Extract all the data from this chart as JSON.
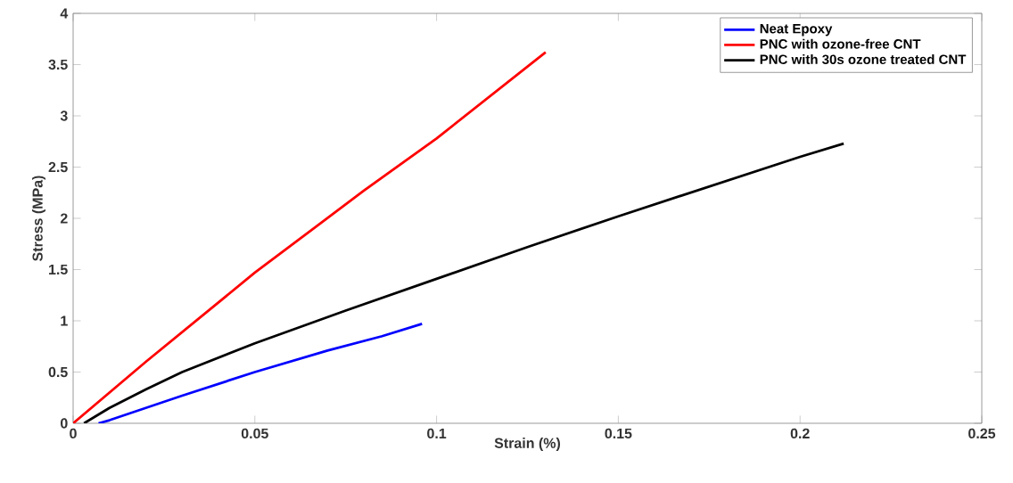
{
  "chart_data": {
    "type": "line",
    "xlabel": "Strain (%)",
    "ylabel": "Stress (MPa)",
    "xlim": [
      0,
      0.25
    ],
    "ylim": [
      0,
      4
    ],
    "xticks": [
      0,
      0.05,
      0.1,
      0.15,
      0.2,
      0.25
    ],
    "yticks": [
      0,
      0.5,
      1,
      1.5,
      2,
      2.5,
      3,
      3.5,
      4
    ],
    "grid": false,
    "legend": "top right",
    "line_style": "solid",
    "marker": "none",
    "series": [
      {
        "name": "Neat Epoxy",
        "color": "#0000ff",
        "x": [
          0.007,
          0.01,
          0.02,
          0.03,
          0.05,
          0.07,
          0.085,
          0.096
        ],
        "values": [
          0,
          0.03,
          0.15,
          0.27,
          0.5,
          0.71,
          0.85,
          0.97
        ]
      },
      {
        "name": "PNC with ozone-free CNT",
        "color": "#ff0000",
        "x": [
          0,
          0.02,
          0.05,
          0.08,
          0.1,
          0.13
        ],
        "values": [
          0,
          0.6,
          1.47,
          2.27,
          2.78,
          3.62
        ]
      },
      {
        "name": "PNC with 30s ozone treated CNT",
        "color": "#000000",
        "x": [
          0.003,
          0.01,
          0.02,
          0.03,
          0.05,
          0.075,
          0.1,
          0.125,
          0.15,
          0.175,
          0.2,
          0.212
        ],
        "values": [
          0,
          0.15,
          0.33,
          0.5,
          0.78,
          1.1,
          1.41,
          1.72,
          2.02,
          2.31,
          2.6,
          2.73
        ]
      }
    ]
  }
}
